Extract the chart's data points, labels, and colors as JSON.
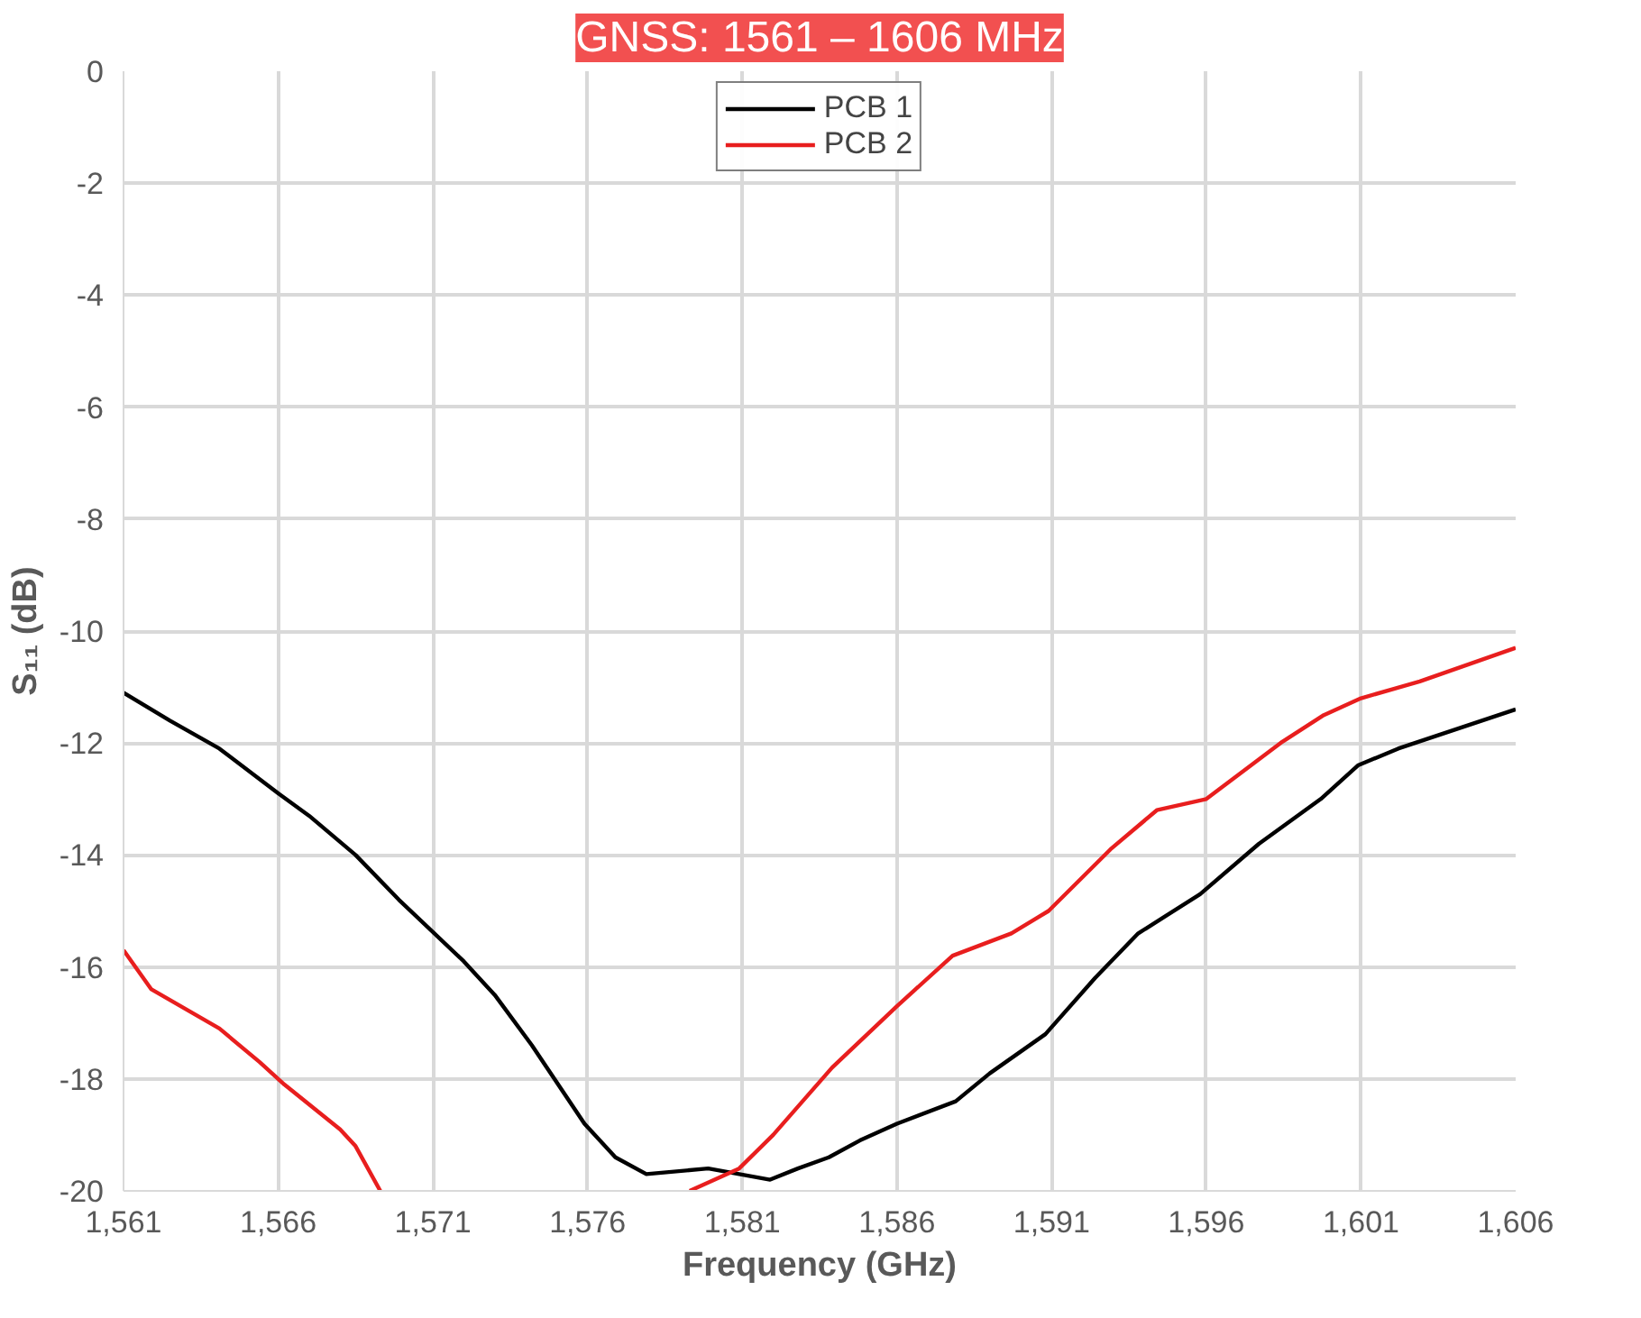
{
  "chart_data": {
    "type": "line",
    "title": "GNSS: 1561 – 1606 MHz",
    "xlabel": "Frequency (GHz)",
    "ylabel": "S₁₁ (dB)",
    "xlim": [
      1561,
      1606
    ],
    "xticks": [
      {
        "value": 1561,
        "label": "1,561"
      },
      {
        "value": 1566,
        "label": "1,566"
      },
      {
        "value": 1571,
        "label": "1,571"
      },
      {
        "value": 1576,
        "label": "1,576"
      },
      {
        "value": 1581,
        "label": "1,581"
      },
      {
        "value": 1586,
        "label": "1,586"
      },
      {
        "value": 1591,
        "label": "1,591"
      },
      {
        "value": 1596,
        "label": "1,596"
      },
      {
        "value": 1601,
        "label": "1,601"
      },
      {
        "value": 1606,
        "label": "1,606"
      }
    ],
    "ylim": [
      -20,
      0
    ],
    "yticks": [
      0,
      -2,
      -4,
      -6,
      -8,
      -10,
      -12,
      -14,
      -16,
      -18,
      -20
    ],
    "grid": true,
    "legend": "top",
    "line_style": "solid",
    "marker": "none",
    "series": [
      {
        "name": "PCB 1",
        "color": "#000000",
        "x": [
          1561,
          1562.5,
          1564.1,
          1566,
          1567,
          1568.5,
          1569.9,
          1572,
          1573,
          1574.2,
          1575.9,
          1576.9,
          1577.9,
          1579.9,
          1580.9,
          1581.9,
          1582.8,
          1583.8,
          1584.8,
          1586,
          1587.9,
          1589,
          1590.8,
          1592.4,
          1593.8,
          1595.8,
          1597.7,
          1599.7,
          1600.9,
          1602.2,
          1606
        ],
        "values": [
          -11.1,
          -11.6,
          -12.1,
          -12.9,
          -13.3,
          -14.0,
          -14.8,
          -15.9,
          -16.5,
          -17.4,
          -18.8,
          -19.4,
          -19.7,
          -19.6,
          -19.7,
          -19.8,
          -19.6,
          -19.4,
          -19.1,
          -18.8,
          -18.4,
          -17.9,
          -17.2,
          -16.2,
          -15.4,
          -14.7,
          -13.8,
          -13.0,
          -12.4,
          -12.1,
          -11.4
        ]
      },
      {
        "name": "PCB 2",
        "color": "#e81e1e",
        "x": [
          1561,
          1561.9,
          1564.1,
          1565.4,
          1566.2,
          1568,
          1568.5,
          1569.3,
          1574,
          1579.3,
          1580.9,
          1582,
          1583.9,
          1586,
          1587.8,
          1589.7,
          1590.9,
          1592.9,
          1594.4,
          1596,
          1598.4,
          1599.8,
          1601,
          1602.9,
          1606
        ],
        "values": [
          -15.7,
          -16.4,
          -17.1,
          -17.7,
          -18.1,
          -18.9,
          -19.2,
          -20.0,
          null,
          -20.0,
          -19.6,
          -19.0,
          -17.8,
          -16.7,
          -15.8,
          -15.4,
          -15.0,
          -13.9,
          -13.2,
          -13.0,
          -12.0,
          -11.5,
          -11.2,
          -10.9,
          -10.3
        ]
      }
    ]
  }
}
